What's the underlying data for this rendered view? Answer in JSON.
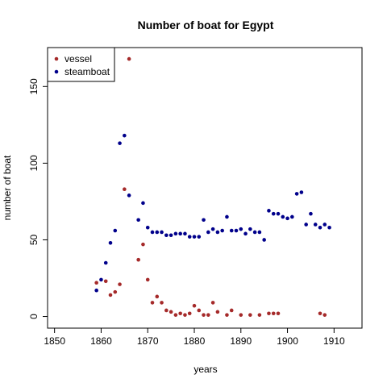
{
  "chart_data": {
    "type": "scatter",
    "title": "Number of boat for Egypt",
    "xlabel": "years",
    "ylabel": "number of boat",
    "xlim": [
      1848.5,
      1916
    ],
    "ylim": [
      -7.6,
      175.4
    ],
    "x_ticks": [
      1850,
      1860,
      1870,
      1880,
      1890,
      1900,
      1910
    ],
    "y_ticks": [
      0,
      50,
      100,
      150
    ],
    "grid": false,
    "legend_position": "top-left",
    "series": [
      {
        "name": "vessel",
        "color": "#a52a2a",
        "points": [
          [
            1859,
            22
          ],
          [
            1861,
            23
          ],
          [
            1862,
            14
          ],
          [
            1863,
            16
          ],
          [
            1864,
            21
          ],
          [
            1865,
            83
          ],
          [
            1866,
            168
          ],
          [
            1868,
            37
          ],
          [
            1869,
            47
          ],
          [
            1870,
            24
          ],
          [
            1871,
            9
          ],
          [
            1872,
            13
          ],
          [
            1873,
            9
          ],
          [
            1874,
            4
          ],
          [
            1875,
            3
          ],
          [
            1876,
            1
          ],
          [
            1877,
            2
          ],
          [
            1878,
            1
          ],
          [
            1879,
            2
          ],
          [
            1880,
            7
          ],
          [
            1881,
            4
          ],
          [
            1882,
            1
          ],
          [
            1883,
            1
          ],
          [
            1884,
            9
          ],
          [
            1885,
            3
          ],
          [
            1887,
            1
          ],
          [
            1888,
            4
          ],
          [
            1890,
            1
          ],
          [
            1892,
            1
          ],
          [
            1894,
            1
          ],
          [
            1896,
            2
          ],
          [
            1897,
            2
          ],
          [
            1898,
            2
          ],
          [
            1907,
            2
          ],
          [
            1908,
            1
          ]
        ]
      },
      {
        "name": "steamboat",
        "color": "#00008b",
        "points": [
          [
            1859,
            17
          ],
          [
            1860,
            24
          ],
          [
            1861,
            35
          ],
          [
            1862,
            48
          ],
          [
            1863,
            56
          ],
          [
            1864,
            113
          ],
          [
            1865,
            118
          ],
          [
            1866,
            79
          ],
          [
            1868,
            63
          ],
          [
            1869,
            74
          ],
          [
            1870,
            58
          ],
          [
            1871,
            55
          ],
          [
            1872,
            55
          ],
          [
            1873,
            55
          ],
          [
            1874,
            53
          ],
          [
            1875,
            53
          ],
          [
            1876,
            54
          ],
          [
            1877,
            54
          ],
          [
            1878,
            54
          ],
          [
            1879,
            52
          ],
          [
            1880,
            52
          ],
          [
            1881,
            52
          ],
          [
            1882,
            63
          ],
          [
            1883,
            55
          ],
          [
            1884,
            57
          ],
          [
            1885,
            55
          ],
          [
            1886,
            56
          ],
          [
            1887,
            65
          ],
          [
            1888,
            56
          ],
          [
            1889,
            56
          ],
          [
            1890,
            57
          ],
          [
            1891,
            54
          ],
          [
            1892,
            57
          ],
          [
            1893,
            55
          ],
          [
            1894,
            55
          ],
          [
            1895,
            50
          ],
          [
            1896,
            69
          ],
          [
            1897,
            67
          ],
          [
            1898,
            67
          ],
          [
            1899,
            65
          ],
          [
            1900,
            64
          ],
          [
            1901,
            65
          ],
          [
            1902,
            80
          ],
          [
            1903,
            81
          ],
          [
            1904,
            60
          ],
          [
            1905,
            67
          ],
          [
            1906,
            60
          ],
          [
            1907,
            58
          ],
          [
            1908,
            60
          ],
          [
            1909,
            58
          ]
        ]
      }
    ]
  }
}
